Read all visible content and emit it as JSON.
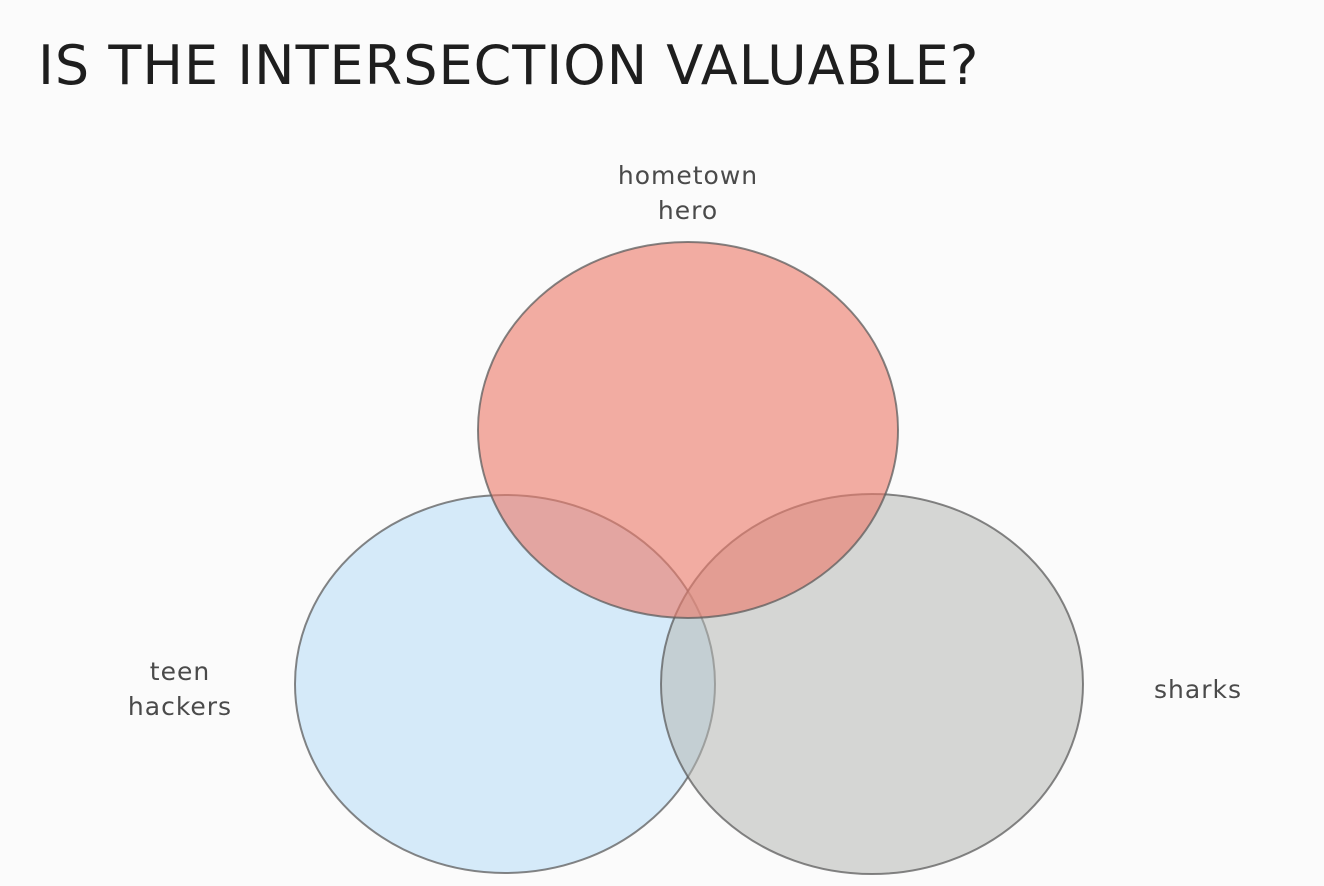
{
  "title": "IS THE INTERSECTION VALUABLE?",
  "sets": [
    {
      "name_lines": [
        "hometown",
        "hero"
      ],
      "color": "#ec7a6a"
    },
    {
      "name_lines": [
        "teen",
        "hackers"
      ],
      "color": "#c4e2f8"
    },
    {
      "name_lines": [
        "sharks"
      ],
      "color": "#c6c7c4"
    }
  ],
  "outline_color": "#5c5c5c",
  "background": "#fbfbfb"
}
